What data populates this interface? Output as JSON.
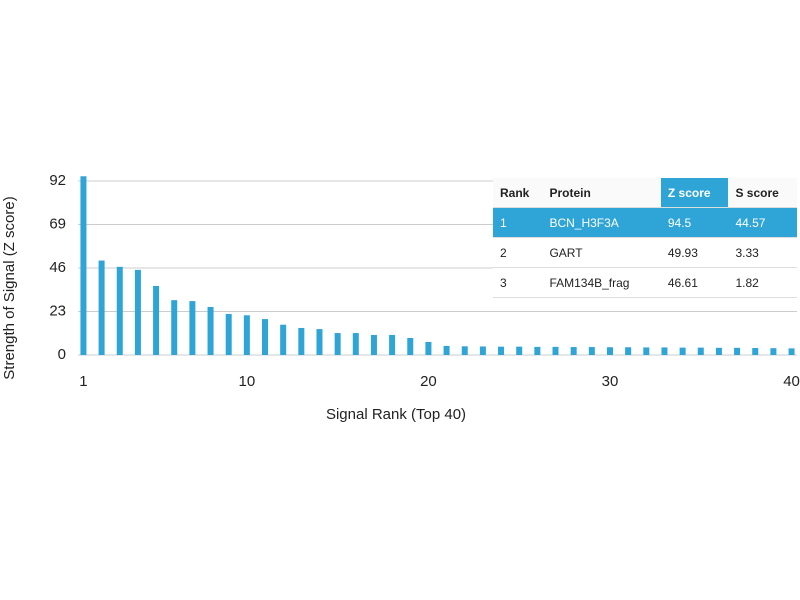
{
  "chart_data": {
    "type": "bar",
    "x": [
      1,
      2,
      3,
      4,
      5,
      6,
      7,
      8,
      9,
      10,
      11,
      12,
      13,
      14,
      15,
      16,
      17,
      18,
      19,
      20,
      21,
      22,
      23,
      24,
      25,
      26,
      27,
      28,
      29,
      30,
      31,
      32,
      33,
      34,
      35,
      36,
      37,
      38,
      39,
      40
    ],
    "values": [
      94.5,
      49.93,
      46.61,
      45,
      36.5,
      29,
      28.5,
      25.4,
      21.7,
      21,
      19,
      16,
      14.3,
      13.7,
      11.6,
      11.6,
      10.6,
      10.6,
      9,
      6.9,
      4.8,
      4.6,
      4.5,
      4.4,
      4.4,
      4.3,
      4.3,
      4.2,
      4.2,
      4.1,
      4.1,
      4,
      4,
      3.9,
      3.9,
      3.8,
      3.8,
      3.7,
      3.6,
      3.5
    ],
    "color": "#2fa4d7",
    "xlim": [
      0.7,
      40.3
    ],
    "xticks": [
      1,
      10,
      20,
      30,
      40
    ],
    "ylim": [
      0,
      92
    ],
    "yticks": [
      0,
      23,
      46,
      69,
      92
    ],
    "grid": true,
    "xlabel": "Signal Rank (Top 40)",
    "ylabel": "Strength of Signal (Z score)"
  },
  "table": {
    "columns": [
      "Rank",
      "Protein",
      "Z score",
      "S score"
    ],
    "rows": [
      [
        "1",
        "BCN_H3F3A",
        "94.5",
        "44.57"
      ],
      [
        "2",
        "GART",
        "49.93",
        "3.33"
      ],
      [
        "3",
        "FAM134B_frag",
        "46.61",
        "1.82"
      ]
    ]
  }
}
